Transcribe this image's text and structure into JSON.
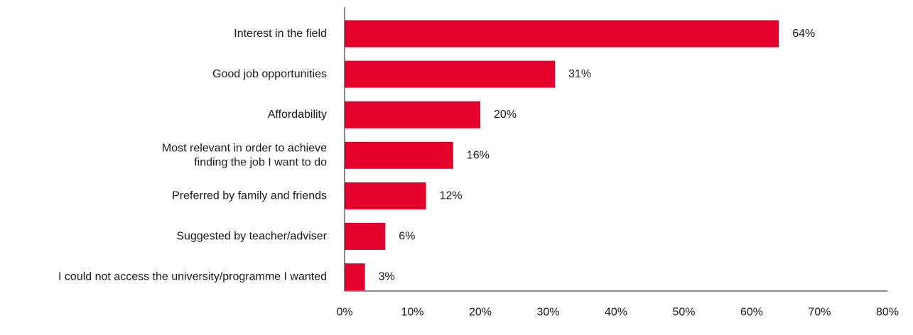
{
  "chart_data": {
    "type": "bar",
    "orientation": "horizontal",
    "title": "",
    "xlabel": "",
    "ylabel": "",
    "categories": [
      [
        "Interest in the field"
      ],
      [
        "Good job opportunities"
      ],
      [
        "Affordability"
      ],
      [
        "Most relevant in order to achieve",
        "finding the job I want to do"
      ],
      [
        "Preferred by family and friends"
      ],
      [
        "Suggested by teacher/adviser"
      ],
      [
        "I could not access the university/programme I wanted"
      ]
    ],
    "values": [
      64,
      31,
      20,
      16,
      12,
      6,
      3
    ],
    "data_labels": [
      "64%",
      "31%",
      "20%",
      "16%",
      "12%",
      "6%",
      "3%"
    ],
    "xlim": [
      0,
      80
    ],
    "xticks": [
      0,
      10,
      20,
      30,
      40,
      50,
      60,
      70,
      80
    ],
    "xtick_labels": [
      "0%",
      "10%",
      "20%",
      "30%",
      "40%",
      "50%",
      "60%",
      "70%",
      "80%"
    ],
    "bar_color": "#e4002b",
    "axis_color": "#1a1a1a",
    "grid": false,
    "legend": "none"
  }
}
